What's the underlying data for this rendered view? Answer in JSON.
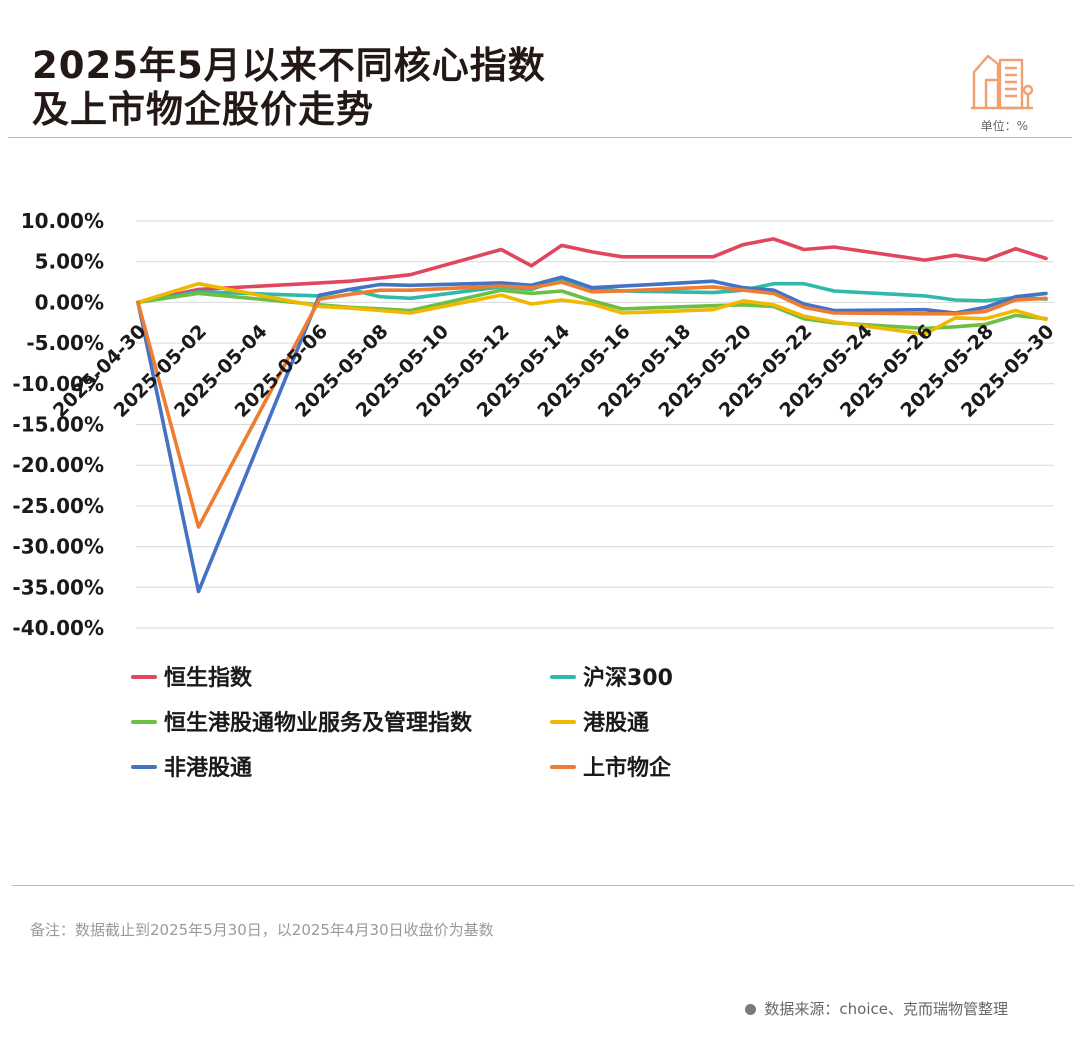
{
  "header": {
    "title_line1": "2025年5月以来不同核心指数",
    "title_line2": "及上市物企股价走势",
    "unit": "单位：%"
  },
  "footer": {
    "note": "备注：数据截止到2025年5月30日，以2025年4月30日收盘价为基数",
    "source": "数据来源：choice、克而瑞物管整理"
  },
  "colors": {
    "hsi": "#e0475e",
    "csi300": "#2eb9a8",
    "hs_property": "#6cbe45",
    "connect": "#f0b800",
    "non_connect": "#4472c4",
    "listed": "#ed7d31",
    "icon": "#f0a070"
  },
  "chart_data": {
    "type": "line",
    "title": "2025年5月以来不同核心指数及上市物企股价走势",
    "ylim": [
      -40,
      10
    ],
    "yticks": [
      "10.00%",
      "5.00%",
      "0.00%",
      "-5.00%",
      "-10.00%",
      "-15.00%",
      "-20.00%",
      "-25.00%",
      "-30.00%",
      "-35.00%",
      "-40.00%"
    ],
    "xticks": [
      "2025-04-30",
      "2025-05-02",
      "2025-05-04",
      "2025-05-06",
      "2025-05-08",
      "2025-05-10",
      "2025-05-12",
      "2025-05-14",
      "2025-05-16",
      "2025-05-18",
      "2025-05-20",
      "2025-05-22",
      "2025-05-24",
      "2025-05-26",
      "2025-05-28",
      "2025-05-30"
    ],
    "x": [
      "2025-04-30",
      "2025-05-02",
      "2025-05-06",
      "2025-05-07",
      "2025-05-08",
      "2025-05-09",
      "2025-05-12",
      "2025-05-13",
      "2025-05-14",
      "2025-05-15",
      "2025-05-16",
      "2025-05-19",
      "2025-05-20",
      "2025-05-21",
      "2025-05-22",
      "2025-05-23",
      "2025-05-26",
      "2025-05-27",
      "2025-05-28",
      "2025-05-29",
      "2025-05-30"
    ],
    "series": [
      {
        "name": "恒生指数",
        "color": "#e0475e",
        "values": [
          0,
          1.6,
          2.4,
          2.6,
          3.0,
          3.4,
          6.5,
          4.5,
          7.0,
          6.2,
          5.6,
          5.6,
          7.1,
          7.8,
          6.5,
          6.8,
          5.2,
          5.8,
          5.2,
          6.6,
          5.4
        ]
      },
      {
        "name": "沪深300",
        "color": "#2eb9a8",
        "values": [
          0,
          1.3,
          0.8,
          1.6,
          0.7,
          0.5,
          1.9,
          1.6,
          2.9,
          1.7,
          1.4,
          1.2,
          1.5,
          2.3,
          2.3,
          1.4,
          0.8,
          0.3,
          0.2,
          0.6,
          0.4
        ]
      },
      {
        "name": "恒生港股通物业服务及管理指数",
        "color": "#6cbe45",
        "values": [
          0,
          1.1,
          -0.3,
          -0.6,
          -0.8,
          -1.0,
          1.5,
          1.1,
          1.4,
          0.2,
          -0.8,
          -0.4,
          -0.3,
          -0.5,
          -2.0,
          -2.5,
          -3.2,
          -3.0,
          -2.7,
          -1.6,
          -2.0
        ]
      },
      {
        "name": "港股通",
        "color": "#f0b800",
        "values": [
          0,
          2.3,
          -0.5,
          -0.7,
          -1.0,
          -1.3,
          0.9,
          -0.2,
          0.3,
          -0.2,
          -1.3,
          -0.9,
          0.2,
          -0.3,
          -1.7,
          -2.4,
          -3.9,
          -1.9,
          -2.0,
          -1.0,
          -2.1
        ]
      },
      {
        "name": "非港股通",
        "color": "#4472c4",
        "values": [
          0,
          -35.5,
          0.9,
          1.6,
          2.2,
          2.1,
          2.4,
          2.1,
          3.1,
          1.8,
          2.0,
          2.6,
          1.8,
          1.5,
          -0.2,
          -1.0,
          -0.9,
          -1.3,
          -0.6,
          0.7,
          1.1
        ]
      },
      {
        "name": "上市物企",
        "color": "#ed7d31",
        "values": [
          0,
          -27.6,
          0.4,
          1.0,
          1.5,
          1.5,
          2.0,
          1.8,
          2.5,
          1.3,
          1.4,
          1.9,
          1.5,
          1.1,
          -0.6,
          -1.3,
          -1.4,
          -1.4,
          -1.1,
          0.3,
          0.5
        ]
      }
    ],
    "legend_placement": "bottom",
    "grid": true
  }
}
